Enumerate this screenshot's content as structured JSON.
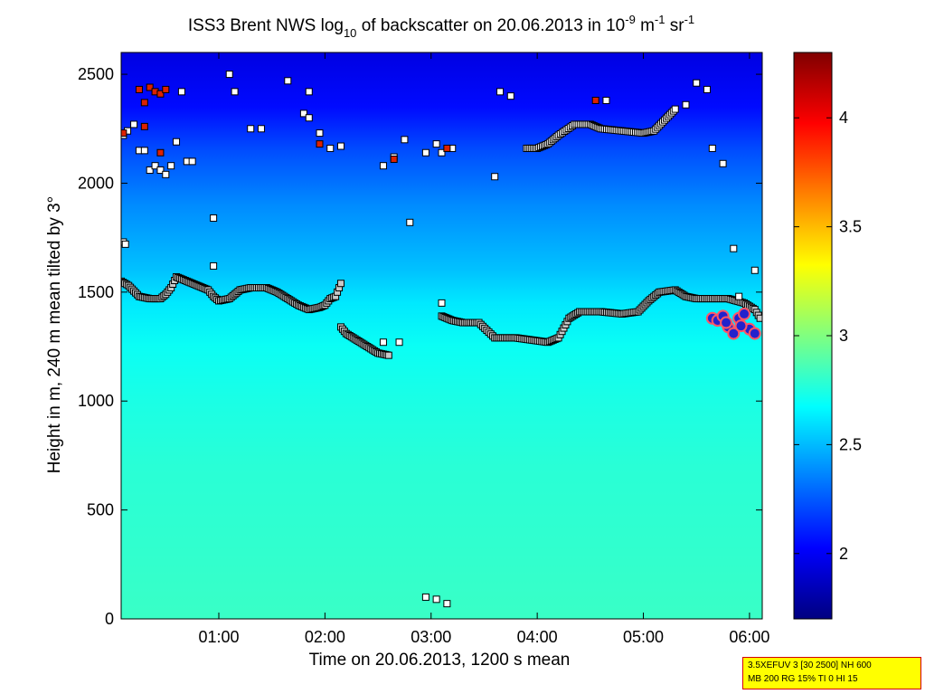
{
  "chart_data": {
    "type": "heatmap",
    "title_parts": {
      "prefix": "ISS3 Brent NWS log",
      "sub": "10",
      "mid": " of backscatter on 20.06.2013 in 10",
      "exp1": "-9",
      "unit1": " m",
      "exp2": "-1",
      "unit2": " sr",
      "exp3": "-1"
    },
    "xlabel": "Time on 20.06.2013, 1200 s mean",
    "ylabel": "Height in m, 240 m mean tilted by 3°",
    "x_unit": "hours",
    "xlim": [
      0.08,
      6.12
    ],
    "ylim": [
      0,
      2600
    ],
    "xticks": [
      {
        "v": 1,
        "label": "01:00"
      },
      {
        "v": 2,
        "label": "02:00"
      },
      {
        "v": 3,
        "label": "03:00"
      },
      {
        "v": 4,
        "label": "04:00"
      },
      {
        "v": 5,
        "label": "05:00"
      },
      {
        "v": 6,
        "label": "06:00"
      }
    ],
    "yticks": [
      {
        "v": 0,
        "label": "0"
      },
      {
        "v": 500,
        "label": "500"
      },
      {
        "v": 1000,
        "label": "1000"
      },
      {
        "v": 1500,
        "label": "1500"
      },
      {
        "v": 2000,
        "label": "2000"
      },
      {
        "v": 2500,
        "label": "2500"
      }
    ],
    "colorbar": {
      "colormap": "jet",
      "clim": [
        1.7,
        4.3
      ],
      "ticks": [
        {
          "v": 2,
          "label": "2"
        },
        {
          "v": 2.5,
          "label": "2.5"
        },
        {
          "v": 3,
          "label": "3"
        },
        {
          "v": 3.5,
          "label": "3.5"
        },
        {
          "v": 4,
          "label": "4"
        }
      ]
    },
    "field_profile": [
      {
        "h": 0,
        "v": 2.82
      },
      {
        "h": 300,
        "v": 2.8
      },
      {
        "h": 700,
        "v": 2.78
      },
      {
        "h": 1000,
        "v": 2.74
      },
      {
        "h": 1250,
        "v": 2.7
      },
      {
        "h": 1450,
        "v": 2.62
      },
      {
        "h": 1600,
        "v": 2.52
      },
      {
        "h": 1900,
        "v": 2.38
      },
      {
        "h": 2150,
        "v": 2.22
      },
      {
        "h": 2350,
        "v": 2.05
      },
      {
        "h": 2600,
        "v": 1.95
      }
    ],
    "inversion_layer": [
      [
        0.08,
        1550
      ],
      [
        0.15,
        1530
      ],
      [
        0.25,
        1480
      ],
      [
        0.35,
        1470
      ],
      [
        0.45,
        1470
      ],
      [
        0.5,
        1490
      ],
      [
        0.55,
        1520
      ],
      [
        0.6,
        1570
      ],
      [
        0.7,
        1550
      ],
      [
        0.8,
        1530
      ],
      [
        0.9,
        1510
      ],
      [
        0.95,
        1480
      ],
      [
        1.0,
        1460
      ],
      [
        1.1,
        1470
      ],
      [
        1.2,
        1510
      ],
      [
        1.3,
        1520
      ],
      [
        1.45,
        1520
      ],
      [
        1.55,
        1500
      ],
      [
        1.65,
        1470
      ],
      [
        1.75,
        1440
      ],
      [
        1.85,
        1420
      ],
      [
        1.95,
        1430
      ],
      [
        2.0,
        1440
      ],
      [
        2.05,
        1470
      ],
      [
        2.1,
        1480
      ],
      [
        2.15,
        1540
      ]
    ],
    "inversion_layer_mid": [
      [
        2.15,
        1340
      ],
      [
        2.2,
        1310
      ],
      [
        2.3,
        1280
      ],
      [
        2.4,
        1250
      ],
      [
        2.5,
        1220
      ],
      [
        2.6,
        1210
      ]
    ],
    "inversion_layer_right": [
      [
        3.1,
        1390
      ],
      [
        3.2,
        1370
      ],
      [
        3.3,
        1360
      ],
      [
        3.45,
        1360
      ],
      [
        3.6,
        1290
      ],
      [
        3.8,
        1290
      ],
      [
        3.95,
        1280
      ],
      [
        4.1,
        1270
      ],
      [
        4.2,
        1290
      ],
      [
        4.3,
        1380
      ],
      [
        4.4,
        1410
      ],
      [
        4.6,
        1410
      ],
      [
        4.8,
        1400
      ],
      [
        4.95,
        1410
      ],
      [
        5.05,
        1460
      ],
      [
        5.15,
        1500
      ],
      [
        5.3,
        1510
      ],
      [
        5.4,
        1480
      ],
      [
        5.5,
        1470
      ],
      [
        5.65,
        1470
      ],
      [
        5.8,
        1470
      ],
      [
        5.95,
        1450
      ],
      [
        6.05,
        1420
      ],
      [
        6.1,
        1380
      ]
    ],
    "upper_layer": [
      [
        3.9,
        2160
      ],
      [
        4.0,
        2160
      ],
      [
        4.1,
        2180
      ],
      [
        4.2,
        2220
      ],
      [
        4.35,
        2270
      ],
      [
        4.5,
        2270
      ],
      [
        4.6,
        2250
      ],
      [
        4.8,
        2240
      ],
      [
        5.0,
        2230
      ],
      [
        5.1,
        2240
      ],
      [
        5.2,
        2290
      ],
      [
        5.3,
        2340
      ]
    ],
    "scattered_points": [
      [
        0.1,
        2220
      ],
      [
        0.14,
        2240
      ],
      [
        0.2,
        2270
      ],
      [
        0.25,
        2150
      ],
      [
        0.3,
        2150
      ],
      [
        0.35,
        2060
      ],
      [
        0.4,
        2080
      ],
      [
        0.45,
        2060
      ],
      [
        0.5,
        2040
      ],
      [
        0.55,
        2080
      ],
      [
        0.6,
        2190
      ],
      [
        0.7,
        2100
      ],
      [
        0.75,
        2100
      ],
      [
        0.65,
        2420
      ],
      [
        0.1,
        1730
      ],
      [
        0.12,
        1720
      ],
      [
        0.95,
        1840
      ],
      [
        0.95,
        1620
      ],
      [
        1.1,
        2500
      ],
      [
        1.15,
        2420
      ],
      [
        1.3,
        2250
      ],
      [
        1.4,
        2250
      ],
      [
        1.65,
        2470
      ],
      [
        1.8,
        2320
      ],
      [
        1.85,
        2420
      ],
      [
        1.85,
        2300
      ],
      [
        1.95,
        2230
      ],
      [
        2.05,
        2160
      ],
      [
        2.15,
        2170
      ],
      [
        2.55,
        2080
      ],
      [
        2.65,
        2120
      ],
      [
        2.75,
        2200
      ],
      [
        2.8,
        1820
      ],
      [
        2.95,
        2140
      ],
      [
        3.05,
        2180
      ],
      [
        3.1,
        2140
      ],
      [
        3.2,
        2160
      ],
      [
        3.65,
        2420
      ],
      [
        3.75,
        2400
      ],
      [
        3.6,
        2030
      ],
      [
        4.65,
        2380
      ],
      [
        2.55,
        1270
      ],
      [
        2.7,
        1270
      ],
      [
        5.4,
        2360
      ],
      [
        5.5,
        2460
      ],
      [
        5.6,
        2430
      ],
      [
        5.65,
        2160
      ],
      [
        5.75,
        2090
      ],
      [
        5.85,
        1700
      ],
      [
        5.9,
        1480
      ],
      [
        6.05,
        1600
      ],
      [
        3.1,
        1450
      ],
      [
        2.95,
        100
      ],
      [
        3.05,
        90
      ],
      [
        3.15,
        70
      ]
    ],
    "red_points": [
      [
        0.1,
        2230
      ],
      [
        0.25,
        2430
      ],
      [
        0.3,
        2370
      ],
      [
        0.35,
        2440
      ],
      [
        0.4,
        2420
      ],
      [
        0.45,
        2410
      ],
      [
        0.5,
        2430
      ],
      [
        0.3,
        2260
      ],
      [
        0.45,
        2140
      ],
      [
        1.95,
        2180
      ],
      [
        2.65,
        2110
      ],
      [
        3.15,
        2160
      ],
      [
        4.55,
        2380
      ]
    ],
    "cloud_points": [
      [
        5.65,
        1380
      ],
      [
        5.7,
        1370
      ],
      [
        5.75,
        1390
      ],
      [
        5.8,
        1340
      ],
      [
        5.85,
        1310
      ],
      [
        5.9,
        1380
      ],
      [
        5.95,
        1400
      ],
      [
        6.0,
        1330
      ],
      [
        6.05,
        1310
      ],
      [
        5.78,
        1360
      ],
      [
        5.92,
        1345
      ]
    ]
  },
  "info_box": {
    "line1": "3.5XEFUV 3 [30 2500] NH 600",
    "line2": "MB 200 RG 15% TI 0 HI 15"
  }
}
